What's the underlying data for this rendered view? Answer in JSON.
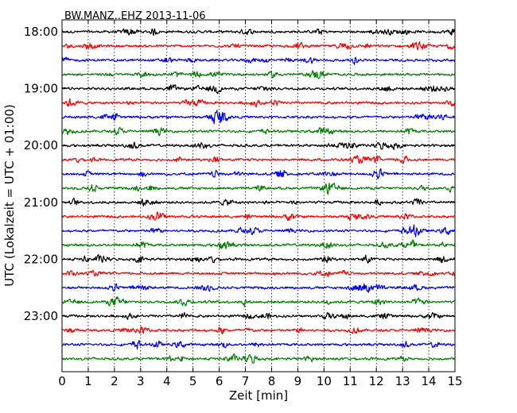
{
  "chart_data": {
    "type": "line",
    "title": "BW.MANZ..EHZ 2013-11-06",
    "xlabel": "Zeit  [min]",
    "ylabel": "UTC (Lokalzeit = UTC + 01:00)",
    "xlim": [
      0,
      15
    ],
    "x_ticks": [
      "0",
      "1",
      "2",
      "3",
      "4",
      "5",
      "6",
      "7",
      "8",
      "9",
      "10",
      "11",
      "12",
      "13",
      "14",
      "15"
    ],
    "y_tick_labels": [
      "18:00",
      "19:00",
      "20:00",
      "21:00",
      "22:00",
      "23:00"
    ],
    "y_tick_hours": [
      0,
      1,
      2,
      3,
      4,
      5
    ],
    "row_interval_minutes": 15,
    "start_time": "18:00",
    "end_time": "23:45",
    "trace_row_count": 24,
    "trace_colors": [
      "#000000",
      "#ff0000",
      "#0000ff",
      "#007f00"
    ],
    "grid": "vertical-dotted"
  }
}
